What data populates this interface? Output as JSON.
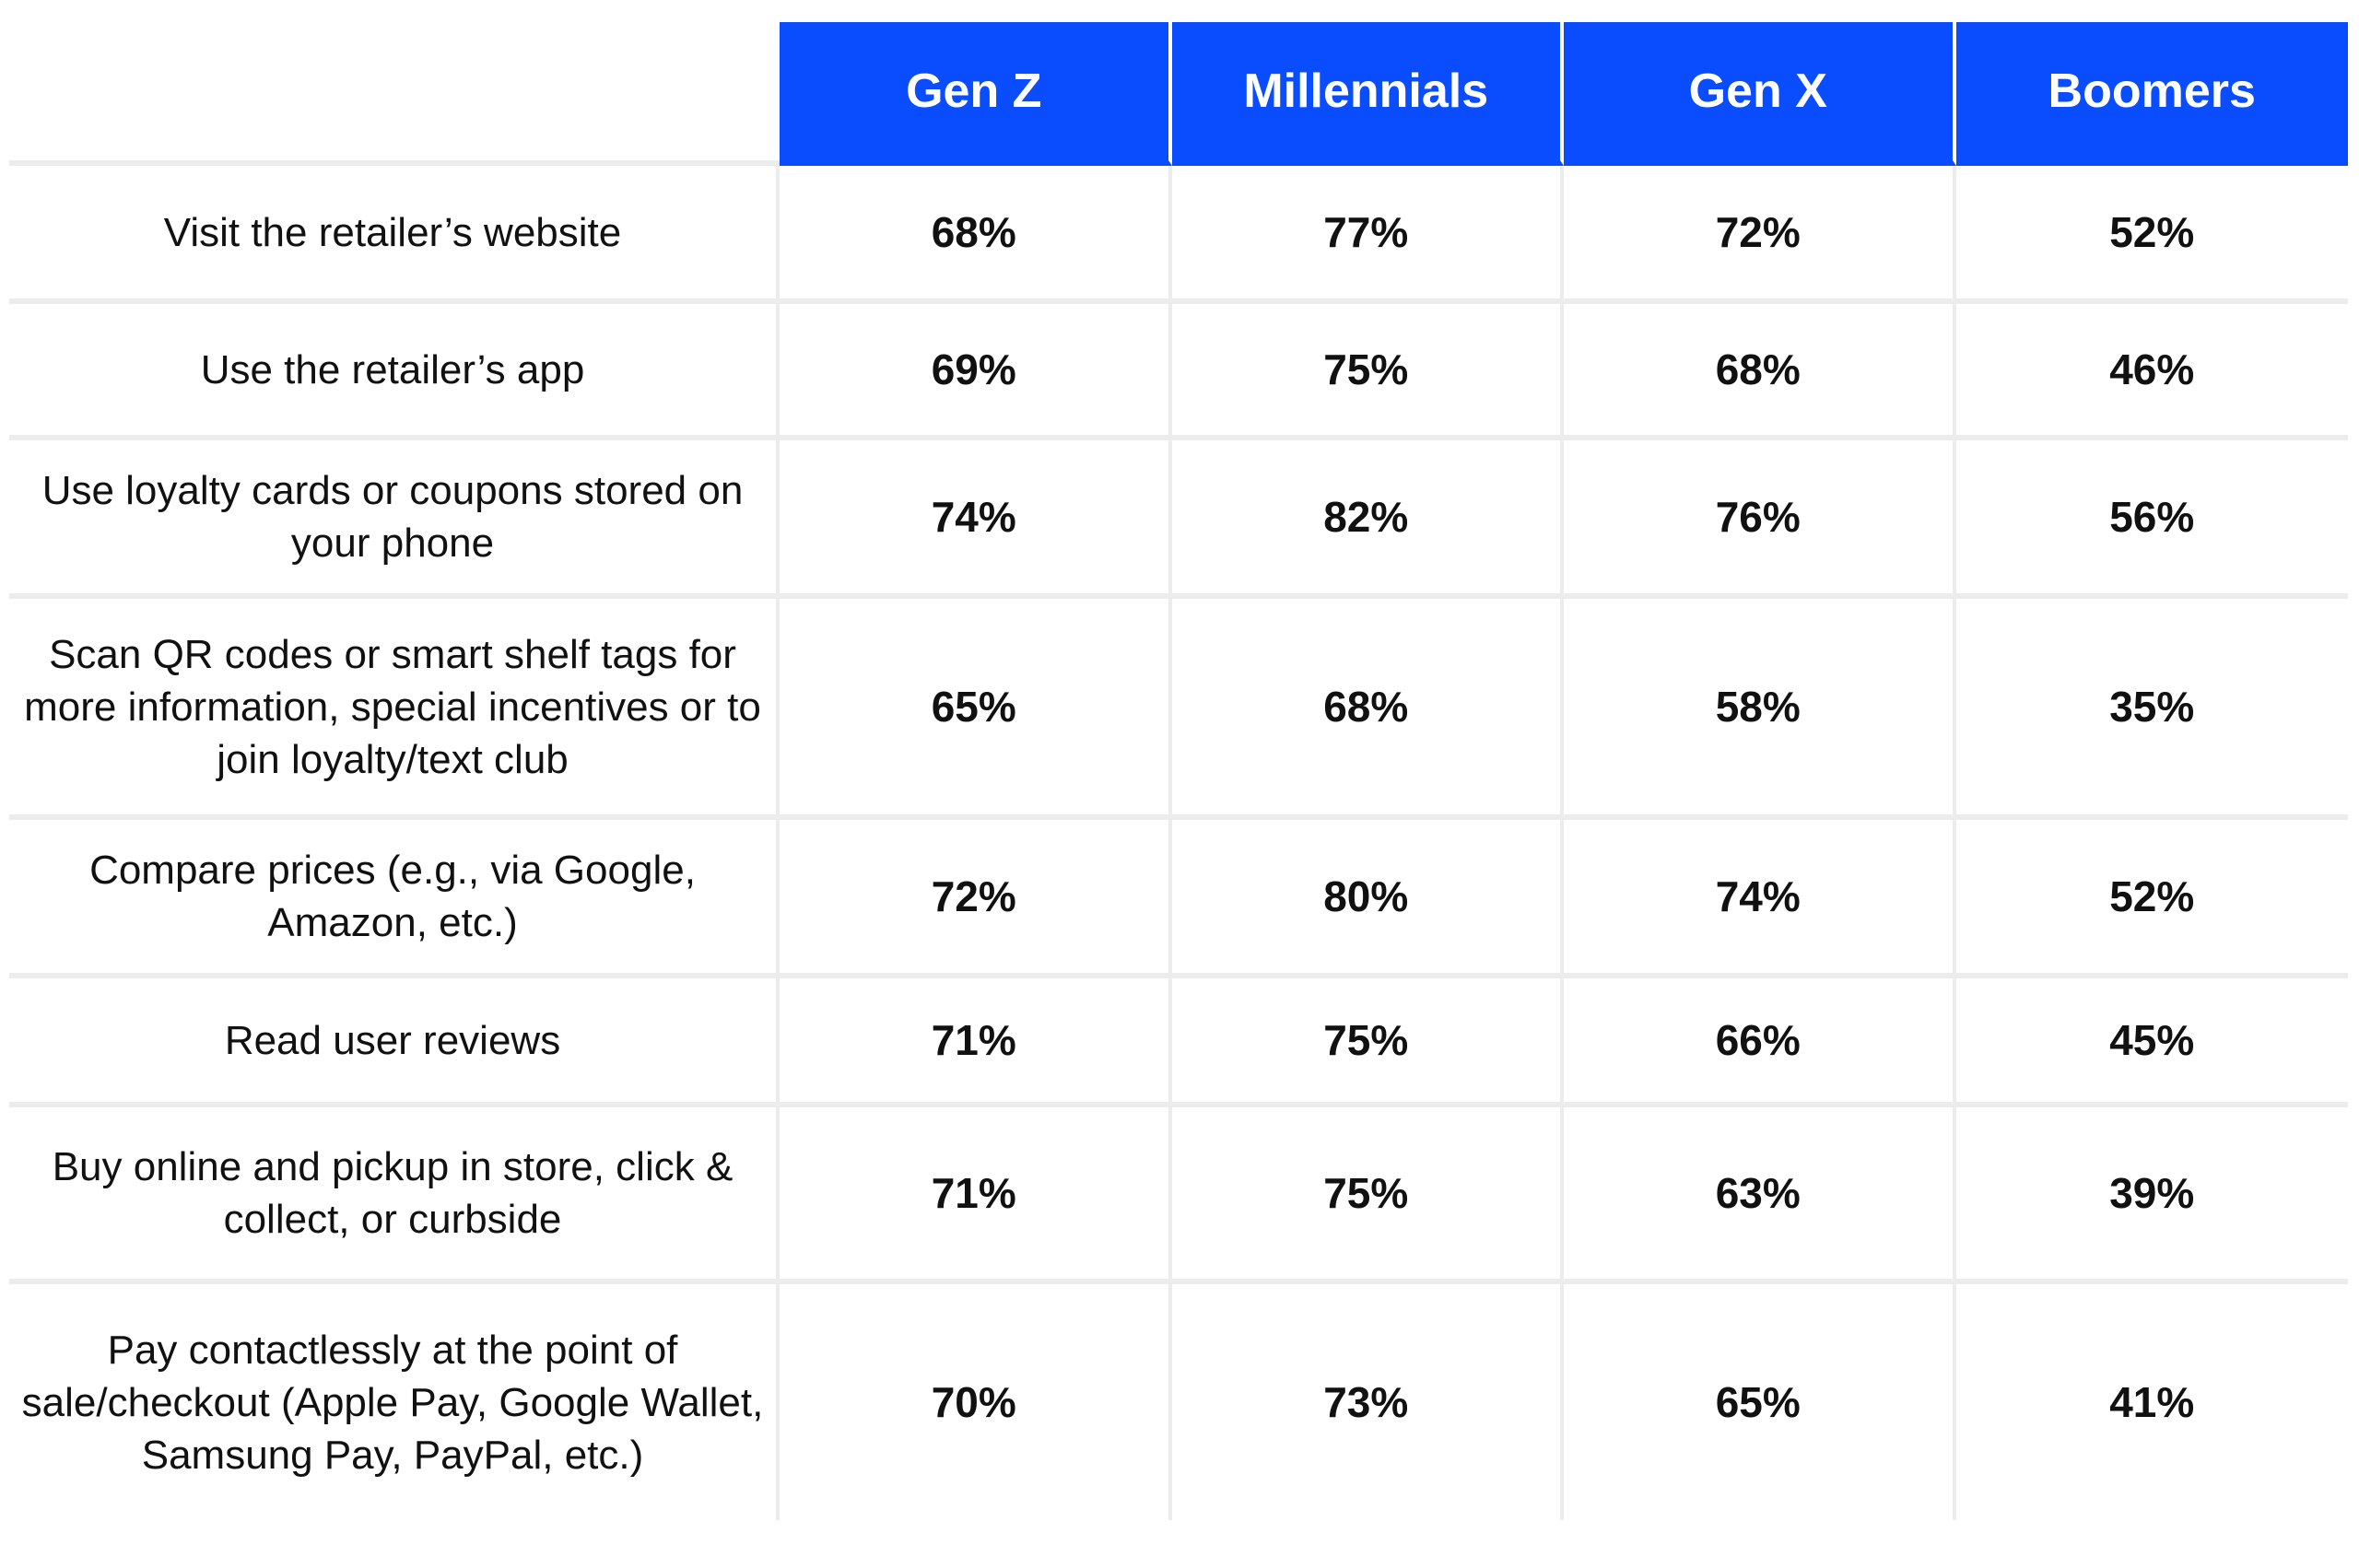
{
  "chart_data": {
    "type": "table",
    "columns": [
      "Gen Z",
      "Millennials",
      "Gen X",
      "Boomers"
    ],
    "rows": [
      {
        "label": "Visit the retailer’s website",
        "values": [
          "68%",
          "77%",
          "72%",
          "52%"
        ]
      },
      {
        "label": "Use the retailer’s app",
        "values": [
          "69%",
          "75%",
          "68%",
          "46%"
        ]
      },
      {
        "label": "Use loyalty cards or coupons stored on your phone",
        "values": [
          "74%",
          "82%",
          "76%",
          "56%"
        ]
      },
      {
        "label": "Scan QR codes or smart shelf tags for more information, special incentives or to join loyalty/text club",
        "values": [
          "65%",
          "68%",
          "58%",
          "35%"
        ]
      },
      {
        "label": "Compare prices (e.g., via Google, Amazon, etc.)",
        "values": [
          "72%",
          "80%",
          "74%",
          "52%"
        ]
      },
      {
        "label": "Read user reviews",
        "values": [
          "71%",
          "75%",
          "66%",
          "45%"
        ]
      },
      {
        "label": "Buy online and pickup in store, click & collect, or curbside",
        "values": [
          "71%",
          "75%",
          "63%",
          "39%"
        ]
      },
      {
        "label": "Pay contactlessly at the point of sale/checkout (Apple Pay, Google Wallet, Samsung Pay, PayPal, etc.)",
        "values": [
          "70%",
          "73%",
          "65%",
          "41%"
        ]
      }
    ]
  },
  "colors": {
    "header_bg": "#0a4dff",
    "header_text": "#ffffff",
    "grid": "#ececec"
  }
}
